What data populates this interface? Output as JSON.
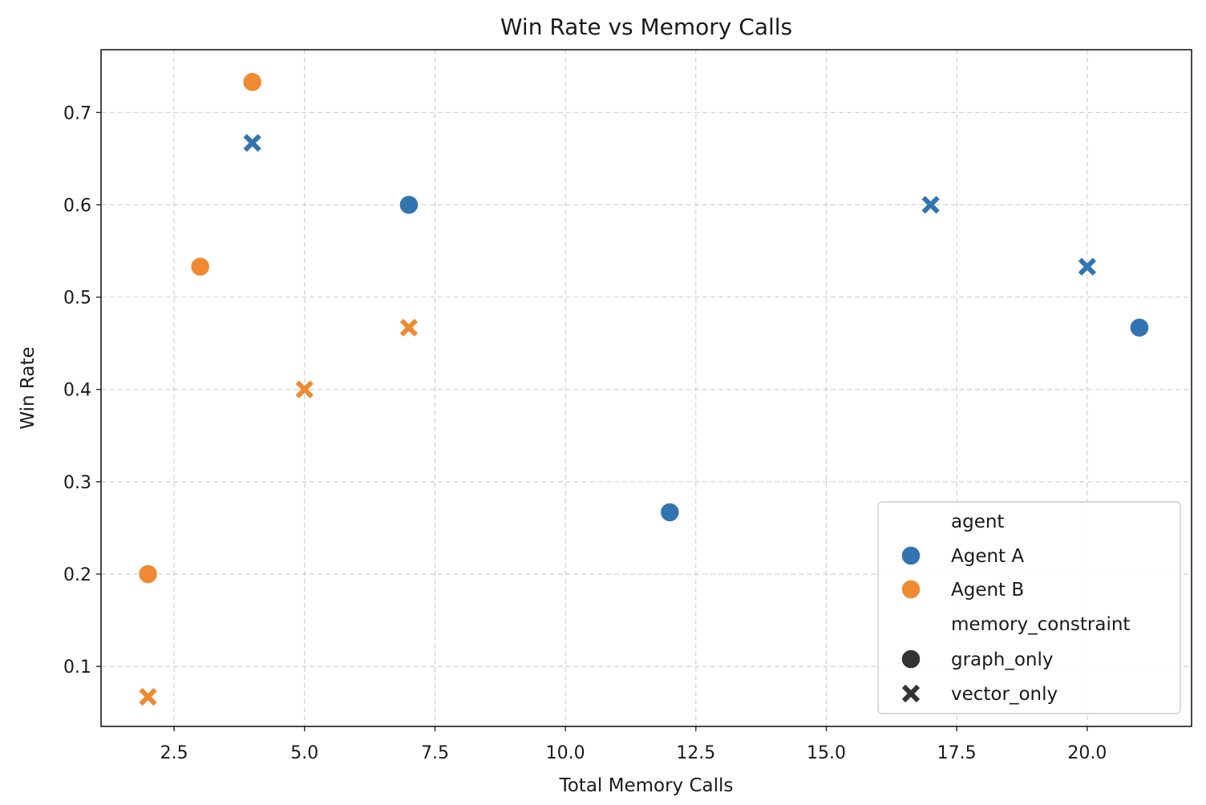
{
  "chart_data": {
    "type": "scatter",
    "title": "Win Rate vs Memory Calls",
    "xlabel": "Total Memory Calls",
    "ylabel": "Win Rate",
    "xlim": [
      1.1,
      22.0
    ],
    "ylim": [
      0.035,
      0.768
    ],
    "xticks": [
      2.5,
      5.0,
      7.5,
      10.0,
      12.5,
      15.0,
      17.5,
      20.0
    ],
    "xtick_labels": [
      "2.5",
      "5.0",
      "7.5",
      "10.0",
      "12.5",
      "15.0",
      "17.5",
      "20.0"
    ],
    "yticks": [
      0.1,
      0.2,
      0.3,
      0.4,
      0.5,
      0.6,
      0.7
    ],
    "ytick_labels": [
      "0.1",
      "0.2",
      "0.3",
      "0.4",
      "0.5",
      "0.6",
      "0.7"
    ],
    "grid": true,
    "legend_position": "lower-right",
    "series": [
      {
        "name": "Agent A",
        "color": "#3274b0",
        "points": [
          {
            "x": 7,
            "y": 0.6,
            "memory_constraint": "graph_only"
          },
          {
            "x": 12,
            "y": 0.267,
            "memory_constraint": "graph_only"
          },
          {
            "x": 21,
            "y": 0.467,
            "memory_constraint": "graph_only"
          },
          {
            "x": 4,
            "y": 0.667,
            "memory_constraint": "vector_only"
          },
          {
            "x": 17,
            "y": 0.6,
            "memory_constraint": "vector_only"
          },
          {
            "x": 20,
            "y": 0.533,
            "memory_constraint": "vector_only"
          }
        ]
      },
      {
        "name": "Agent B",
        "color": "#ef8a32",
        "points": [
          {
            "x": 4,
            "y": 0.733,
            "memory_constraint": "graph_only"
          },
          {
            "x": 3,
            "y": 0.533,
            "memory_constraint": "graph_only"
          },
          {
            "x": 2,
            "y": 0.2,
            "memory_constraint": "graph_only"
          },
          {
            "x": 7,
            "y": 0.467,
            "memory_constraint": "vector_only"
          },
          {
            "x": 5,
            "y": 0.4,
            "memory_constraint": "vector_only"
          },
          {
            "x": 2,
            "y": 0.067,
            "memory_constraint": "vector_only"
          }
        ]
      }
    ],
    "legend": {
      "hue_title": "agent",
      "hue_entries": [
        {
          "label": "Agent A",
          "color": "#3274b0"
        },
        {
          "label": "Agent B",
          "color": "#ef8a32"
        }
      ],
      "style_title": "memory_constraint",
      "style_entries": [
        {
          "label": "graph_only",
          "marker": "circle"
        },
        {
          "label": "vector_only",
          "marker": "x"
        }
      ],
      "style_color": "#333333"
    }
  }
}
